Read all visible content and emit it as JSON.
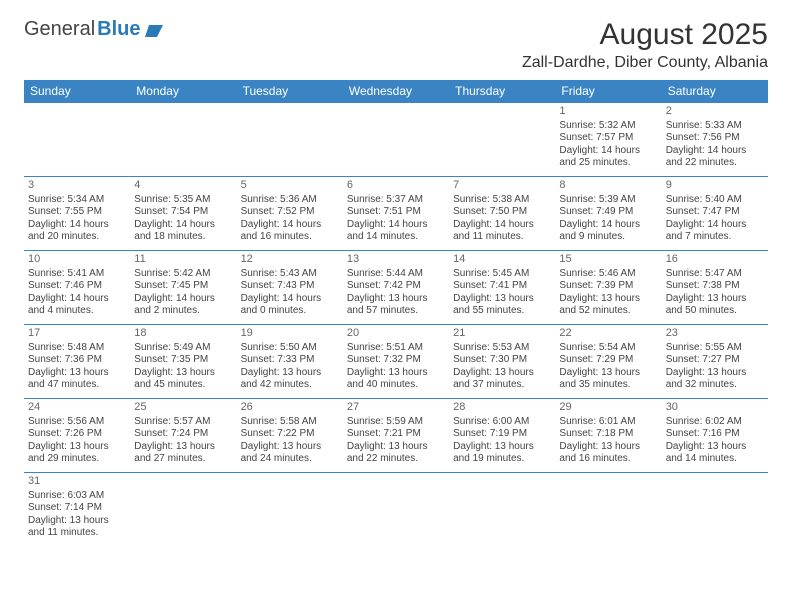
{
  "logo": {
    "text1": "General",
    "text2": "Blue",
    "icon_color": "#2a7ab8"
  },
  "title": "August 2025",
  "location": "Zall-Dardhe, Diber County, Albania",
  "colors": {
    "header_bg": "#3b84c4",
    "header_text": "#ffffff",
    "border": "#3b84c4",
    "text": "#444444",
    "daynum": "#666666"
  },
  "typography": {
    "title_fontsize": 30,
    "location_fontsize": 16,
    "cell_fontsize": 10
  },
  "weekdays": [
    "Sunday",
    "Monday",
    "Tuesday",
    "Wednesday",
    "Thursday",
    "Friday",
    "Saturday"
  ],
  "weeks": [
    [
      null,
      null,
      null,
      null,
      null,
      {
        "n": "1",
        "sr": "Sunrise: 5:32 AM",
        "ss": "Sunset: 7:57 PM",
        "d1": "Daylight: 14 hours",
        "d2": "and 25 minutes."
      },
      {
        "n": "2",
        "sr": "Sunrise: 5:33 AM",
        "ss": "Sunset: 7:56 PM",
        "d1": "Daylight: 14 hours",
        "d2": "and 22 minutes."
      }
    ],
    [
      {
        "n": "3",
        "sr": "Sunrise: 5:34 AM",
        "ss": "Sunset: 7:55 PM",
        "d1": "Daylight: 14 hours",
        "d2": "and 20 minutes."
      },
      {
        "n": "4",
        "sr": "Sunrise: 5:35 AM",
        "ss": "Sunset: 7:54 PM",
        "d1": "Daylight: 14 hours",
        "d2": "and 18 minutes."
      },
      {
        "n": "5",
        "sr": "Sunrise: 5:36 AM",
        "ss": "Sunset: 7:52 PM",
        "d1": "Daylight: 14 hours",
        "d2": "and 16 minutes."
      },
      {
        "n": "6",
        "sr": "Sunrise: 5:37 AM",
        "ss": "Sunset: 7:51 PM",
        "d1": "Daylight: 14 hours",
        "d2": "and 14 minutes."
      },
      {
        "n": "7",
        "sr": "Sunrise: 5:38 AM",
        "ss": "Sunset: 7:50 PM",
        "d1": "Daylight: 14 hours",
        "d2": "and 11 minutes."
      },
      {
        "n": "8",
        "sr": "Sunrise: 5:39 AM",
        "ss": "Sunset: 7:49 PM",
        "d1": "Daylight: 14 hours",
        "d2": "and 9 minutes."
      },
      {
        "n": "9",
        "sr": "Sunrise: 5:40 AM",
        "ss": "Sunset: 7:47 PM",
        "d1": "Daylight: 14 hours",
        "d2": "and 7 minutes."
      }
    ],
    [
      {
        "n": "10",
        "sr": "Sunrise: 5:41 AM",
        "ss": "Sunset: 7:46 PM",
        "d1": "Daylight: 14 hours",
        "d2": "and 4 minutes."
      },
      {
        "n": "11",
        "sr": "Sunrise: 5:42 AM",
        "ss": "Sunset: 7:45 PM",
        "d1": "Daylight: 14 hours",
        "d2": "and 2 minutes."
      },
      {
        "n": "12",
        "sr": "Sunrise: 5:43 AM",
        "ss": "Sunset: 7:43 PM",
        "d1": "Daylight: 14 hours",
        "d2": "and 0 minutes."
      },
      {
        "n": "13",
        "sr": "Sunrise: 5:44 AM",
        "ss": "Sunset: 7:42 PM",
        "d1": "Daylight: 13 hours",
        "d2": "and 57 minutes."
      },
      {
        "n": "14",
        "sr": "Sunrise: 5:45 AM",
        "ss": "Sunset: 7:41 PM",
        "d1": "Daylight: 13 hours",
        "d2": "and 55 minutes."
      },
      {
        "n": "15",
        "sr": "Sunrise: 5:46 AM",
        "ss": "Sunset: 7:39 PM",
        "d1": "Daylight: 13 hours",
        "d2": "and 52 minutes."
      },
      {
        "n": "16",
        "sr": "Sunrise: 5:47 AM",
        "ss": "Sunset: 7:38 PM",
        "d1": "Daylight: 13 hours",
        "d2": "and 50 minutes."
      }
    ],
    [
      {
        "n": "17",
        "sr": "Sunrise: 5:48 AM",
        "ss": "Sunset: 7:36 PM",
        "d1": "Daylight: 13 hours",
        "d2": "and 47 minutes."
      },
      {
        "n": "18",
        "sr": "Sunrise: 5:49 AM",
        "ss": "Sunset: 7:35 PM",
        "d1": "Daylight: 13 hours",
        "d2": "and 45 minutes."
      },
      {
        "n": "19",
        "sr": "Sunrise: 5:50 AM",
        "ss": "Sunset: 7:33 PM",
        "d1": "Daylight: 13 hours",
        "d2": "and 42 minutes."
      },
      {
        "n": "20",
        "sr": "Sunrise: 5:51 AM",
        "ss": "Sunset: 7:32 PM",
        "d1": "Daylight: 13 hours",
        "d2": "and 40 minutes."
      },
      {
        "n": "21",
        "sr": "Sunrise: 5:53 AM",
        "ss": "Sunset: 7:30 PM",
        "d1": "Daylight: 13 hours",
        "d2": "and 37 minutes."
      },
      {
        "n": "22",
        "sr": "Sunrise: 5:54 AM",
        "ss": "Sunset: 7:29 PM",
        "d1": "Daylight: 13 hours",
        "d2": "and 35 minutes."
      },
      {
        "n": "23",
        "sr": "Sunrise: 5:55 AM",
        "ss": "Sunset: 7:27 PM",
        "d1": "Daylight: 13 hours",
        "d2": "and 32 minutes."
      }
    ],
    [
      {
        "n": "24",
        "sr": "Sunrise: 5:56 AM",
        "ss": "Sunset: 7:26 PM",
        "d1": "Daylight: 13 hours",
        "d2": "and 29 minutes."
      },
      {
        "n": "25",
        "sr": "Sunrise: 5:57 AM",
        "ss": "Sunset: 7:24 PM",
        "d1": "Daylight: 13 hours",
        "d2": "and 27 minutes."
      },
      {
        "n": "26",
        "sr": "Sunrise: 5:58 AM",
        "ss": "Sunset: 7:22 PM",
        "d1": "Daylight: 13 hours",
        "d2": "and 24 minutes."
      },
      {
        "n": "27",
        "sr": "Sunrise: 5:59 AM",
        "ss": "Sunset: 7:21 PM",
        "d1": "Daylight: 13 hours",
        "d2": "and 22 minutes."
      },
      {
        "n": "28",
        "sr": "Sunrise: 6:00 AM",
        "ss": "Sunset: 7:19 PM",
        "d1": "Daylight: 13 hours",
        "d2": "and 19 minutes."
      },
      {
        "n": "29",
        "sr": "Sunrise: 6:01 AM",
        "ss": "Sunset: 7:18 PM",
        "d1": "Daylight: 13 hours",
        "d2": "and 16 minutes."
      },
      {
        "n": "30",
        "sr": "Sunrise: 6:02 AM",
        "ss": "Sunset: 7:16 PM",
        "d1": "Daylight: 13 hours",
        "d2": "and 14 minutes."
      }
    ],
    [
      {
        "n": "31",
        "sr": "Sunrise: 6:03 AM",
        "ss": "Sunset: 7:14 PM",
        "d1": "Daylight: 13 hours",
        "d2": "and 11 minutes."
      },
      null,
      null,
      null,
      null,
      null,
      null
    ]
  ]
}
